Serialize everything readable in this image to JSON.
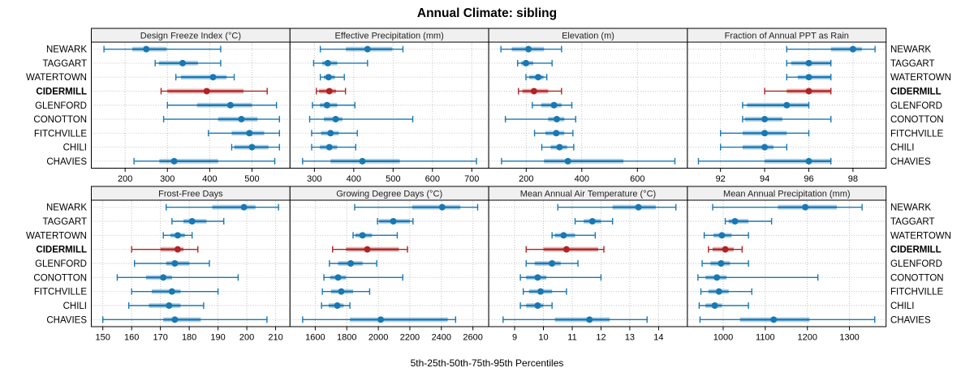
{
  "title": "Annual Climate: sibling",
  "caption": "5th-25th-50th-75th-95th Percentiles",
  "colors": {
    "series_normal": "#1878b4",
    "series_highlight": "#b22222",
    "panel_header_bg": "#f0f0f0",
    "panel_border": "#000000",
    "grid": "#bbbbbb",
    "text": "#000000"
  },
  "chart_data": {
    "type": "dotplot-percentiles",
    "title": "Annual Climate: sibling",
    "caption": "5th-25th-50th-75th-95th Percentiles",
    "percentile_labels": [
      "5th",
      "25th",
      "50th",
      "75th",
      "95th"
    ],
    "rows": [
      "NEWARK",
      "TAGGART",
      "WATERTOWN",
      "CIDERMILL",
      "GLENFORD",
      "CONOTTON",
      "FITCHVILLE",
      "CHILI",
      "CHAVIES"
    ],
    "highlight_row": "CIDERMILL",
    "grid": true,
    "panels": [
      {
        "name": "Design Freeze Index (°C)",
        "xlim": [
          120,
          590
        ],
        "ticks": [
          200,
          300,
          400,
          500
        ],
        "series": [
          [
            150,
            217,
            250,
            298,
            426
          ],
          [
            271,
            280,
            336,
            372,
            426
          ],
          [
            320,
            332,
            408,
            440,
            458
          ],
          [
            285,
            300,
            393,
            480,
            536
          ],
          [
            300,
            370,
            449,
            500,
            558
          ],
          [
            291,
            420,
            475,
            513,
            565
          ],
          [
            397,
            452,
            494,
            529,
            565
          ],
          [
            452,
            458,
            500,
            539,
            565
          ],
          [
            221,
            281,
            316,
            420,
            554
          ]
        ]
      },
      {
        "name": "Effective Precipitation (mm)",
        "xlim": [
          238,
          743
        ],
        "ticks": [
          300,
          400,
          500,
          600,
          700
        ],
        "series": [
          [
            315,
            380,
            435,
            498,
            525
          ],
          [
            298,
            320,
            334,
            358,
            435
          ],
          [
            315,
            324,
            336,
            352,
            376
          ],
          [
            305,
            312,
            338,
            355,
            379
          ],
          [
            295,
            314,
            332,
            358,
            403
          ],
          [
            288,
            324,
            354,
            371,
            550
          ],
          [
            293,
            317,
            341,
            362,
            409
          ],
          [
            293,
            314,
            338,
            358,
            405
          ],
          [
            270,
            341,
            422,
            517,
            712
          ]
        ]
      },
      {
        "name": "Elevation (m)",
        "xlim": [
          65,
          780
        ],
        "ticks": [
          200,
          400,
          600
        ],
        "series": [
          [
            109,
            148,
            208,
            264,
            327
          ],
          [
            169,
            182,
            199,
            225,
            293
          ],
          [
            199,
            211,
            243,
            262,
            274
          ],
          [
            172,
            186,
            228,
            279,
            327
          ],
          [
            222,
            254,
            300,
            327,
            364
          ],
          [
            125,
            279,
            310,
            337,
            378
          ],
          [
            230,
            269,
            308,
            337,
            368
          ],
          [
            256,
            288,
            320,
            347,
            371
          ],
          [
            111,
            264,
            350,
            550,
            735
          ]
        ]
      },
      {
        "name": "Fraction of Annual PPT as Rain",
        "xlim": [
          90.5,
          99.5
        ],
        "ticks": [
          92,
          94,
          96,
          98
        ],
        "series": [
          [
            95,
            97,
            98,
            98.4,
            99
          ],
          [
            95,
            95.2,
            96,
            97,
            97
          ],
          [
            95,
            95.5,
            96,
            97,
            97
          ],
          [
            94,
            95,
            96,
            97,
            97
          ],
          [
            93,
            93.2,
            95,
            96,
            96
          ],
          [
            93,
            93.1,
            94,
            94.8,
            97
          ],
          [
            92,
            93,
            94,
            95,
            96
          ],
          [
            92,
            93,
            94,
            94.4,
            95
          ],
          [
            91,
            94,
            96,
            97,
            97
          ]
        ]
      },
      {
        "name": "Frost-Free Days",
        "xlim": [
          146,
          215
        ],
        "ticks": [
          150,
          160,
          170,
          180,
          190,
          200,
          210
        ],
        "series": [
          [
            172,
            188,
            199,
            203,
            211
          ],
          [
            174,
            178,
            181,
            186,
            192
          ],
          [
            171,
            173.5,
            176,
            178.5,
            181
          ],
          [
            160,
            170,
            176,
            178,
            183
          ],
          [
            161,
            172,
            175,
            180,
            187
          ],
          [
            155,
            165,
            171,
            174,
            197
          ],
          [
            160,
            167,
            174,
            177,
            190
          ],
          [
            159,
            166,
            173,
            177,
            185
          ],
          [
            150,
            171,
            175,
            184,
            207
          ]
        ]
      },
      {
        "name": "Growing Degree Days (°C)",
        "xlim": [
          1440,
          2700
        ],
        "ticks": [
          1600,
          1800,
          2000,
          2200,
          2400,
          2600
        ],
        "series": [
          [
            1850,
            2215,
            2405,
            2520,
            2630
          ],
          [
            1995,
            2005,
            2095,
            2200,
            2220
          ],
          [
            1840,
            1855,
            1900,
            1960,
            2120
          ],
          [
            1710,
            1795,
            1930,
            2130,
            2185
          ],
          [
            1690,
            1745,
            1825,
            1900,
            1990
          ],
          [
            1655,
            1695,
            1745,
            1795,
            2155
          ],
          [
            1645,
            1700,
            1765,
            1840,
            1945
          ],
          [
            1640,
            1685,
            1740,
            1780,
            1820
          ],
          [
            1520,
            1820,
            2015,
            2440,
            2490
          ]
        ]
      },
      {
        "name": "Mean Annual Air Temperature (°C)",
        "xlim": [
          8.1,
          15.0
        ],
        "ticks": [
          9,
          10,
          11,
          12,
          13,
          14
        ],
        "series": [
          [
            10.5,
            12.4,
            13.3,
            13.9,
            14.6
          ],
          [
            11.1,
            11.4,
            11.7,
            12.0,
            12.4
          ],
          [
            10.3,
            10.4,
            10.7,
            11.1,
            11.8
          ],
          [
            9.4,
            10.0,
            10.8,
            11.9,
            12.1
          ],
          [
            9.4,
            9.7,
            10.3,
            10.6,
            11.2
          ],
          [
            9.2,
            9.4,
            9.8,
            10.1,
            12.0
          ],
          [
            9.3,
            9.5,
            9.9,
            10.3,
            10.8
          ],
          [
            9.2,
            9.4,
            9.8,
            10.0,
            10.3
          ],
          [
            8.6,
            10.4,
            11.6,
            12.3,
            13.6
          ]
        ]
      },
      {
        "name": "Mean Annual Precipitation (mm)",
        "xlim": [
          915,
          1387
        ],
        "ticks": [
          1000,
          1100,
          1200,
          1300
        ],
        "series": [
          [
            975,
            1130,
            1195,
            1270,
            1330
          ],
          [
            1005,
            1013,
            1028,
            1060,
            1115
          ],
          [
            955,
            977,
            997,
            1020,
            1060
          ],
          [
            965,
            975,
            1005,
            1025,
            1045
          ],
          [
            950,
            970,
            995,
            1016,
            1060
          ],
          [
            940,
            958,
            985,
            1008,
            1225
          ],
          [
            947,
            965,
            990,
            1013,
            1068
          ],
          [
            943,
            958,
            980,
            997,
            1060
          ],
          [
            945,
            1040,
            1120,
            1205,
            1360
          ]
        ]
      }
    ]
  }
}
